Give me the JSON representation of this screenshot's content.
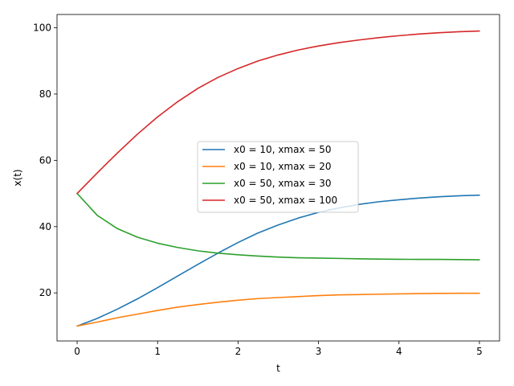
{
  "chart_data": {
    "type": "line",
    "title": "",
    "xlabel": "t",
    "ylabel": "x(t)",
    "xlim": [
      -0.25,
      5.25
    ],
    "ylim": [
      5.5,
      104.0
    ],
    "xticks": [
      0,
      1,
      2,
      3,
      4,
      5
    ],
    "yticks": [
      20,
      40,
      60,
      80,
      100
    ],
    "grid": false,
    "legend_position": "center-right",
    "x": [
      0,
      0.25,
      0.5,
      0.75,
      1,
      1.25,
      1.5,
      1.75,
      2,
      2.25,
      2.5,
      2.75,
      3,
      3.25,
      3.5,
      3.75,
      4,
      4.25,
      4.5,
      4.75,
      5
    ],
    "series": [
      {
        "name": "x0 = 10, xmax = 50",
        "color": "#1f77b4",
        "values": [
          10.0,
          12.3,
          15.1,
          18.2,
          21.6,
          25.1,
          28.6,
          32.0,
          35.2,
          38.1,
          40.5,
          42.6,
          44.3,
          45.6,
          46.7,
          47.5,
          48.1,
          48.6,
          49.0,
          49.3,
          49.5
        ]
      },
      {
        "name": "x0 = 10, xmax = 20",
        "color": "#ff7f0e",
        "values": [
          10.0,
          11.2,
          12.5,
          13.6,
          14.7,
          15.7,
          16.5,
          17.2,
          17.8,
          18.3,
          18.6,
          18.9,
          19.2,
          19.4,
          19.5,
          19.6,
          19.7,
          19.8,
          19.85,
          19.9,
          19.9
        ]
      },
      {
        "name": "x0 = 50, xmax = 30",
        "color": "#2ca02c",
        "values": [
          50.0,
          43.4,
          39.4,
          36.8,
          35.0,
          33.7,
          32.7,
          32.0,
          31.5,
          31.1,
          30.8,
          30.6,
          30.5,
          30.4,
          30.3,
          30.2,
          30.15,
          30.1,
          30.1,
          30.05,
          30.0
        ]
      },
      {
        "name": "x0 = 50, xmax = 100",
        "color": "#d62728",
        "values": [
          50.0,
          56.2,
          62.2,
          67.9,
          73.1,
          77.7,
          81.7,
          85.0,
          87.7,
          90.0,
          91.8,
          93.3,
          94.5,
          95.5,
          96.3,
          97.0,
          97.6,
          98.1,
          98.5,
          98.8,
          99.0
        ]
      }
    ]
  }
}
